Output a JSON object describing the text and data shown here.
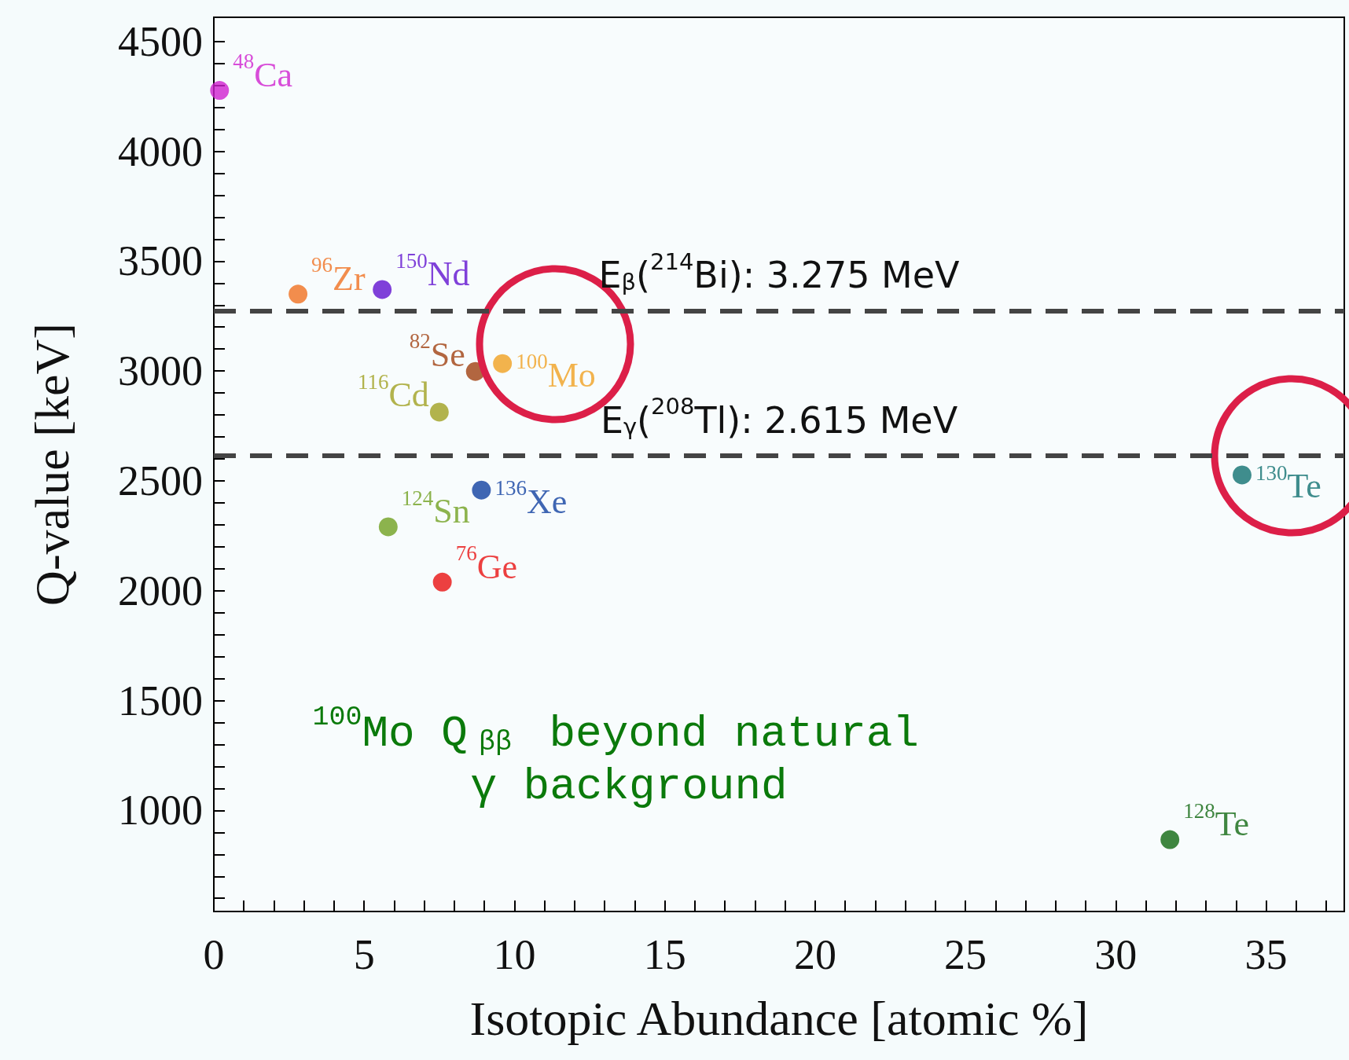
{
  "chart_data": {
    "type": "scatter",
    "xlabel": "Isotopic Abundance [atomic %]",
    "ylabel": "Q-value [keV]",
    "xlim": [
      0,
      37.6
    ],
    "ylim": [
      540,
      4610
    ],
    "xticks": [
      0,
      {
        "value": 1,
        "label": null
      },
      {
        "value": 2,
        "label": null
      },
      {
        "value": 3,
        "label": null
      },
      {
        "value": 4,
        "label": null
      },
      5,
      {
        "value": 6,
        "label": null
      },
      {
        "value": 7,
        "label": null
      },
      {
        "value": 8,
        "label": null
      },
      {
        "value": 9,
        "label": null
      },
      10,
      {
        "value": 11,
        "label": null
      },
      {
        "value": 12,
        "label": null
      },
      {
        "value": 13,
        "label": null
      },
      {
        "value": 14,
        "label": null
      },
      15,
      {
        "value": 16,
        "label": null
      },
      {
        "value": 17,
        "label": null
      },
      {
        "value": 18,
        "label": null
      },
      {
        "value": 19,
        "label": null
      },
      20,
      {
        "value": 21,
        "label": null
      },
      {
        "value": 22,
        "label": null
      },
      {
        "value": 23,
        "label": null
      },
      {
        "value": 24,
        "label": null
      },
      25,
      {
        "value": 26,
        "label": null
      },
      {
        "value": 27,
        "label": null
      },
      {
        "value": 28,
        "label": null
      },
      {
        "value": 29,
        "label": null
      },
      30,
      {
        "value": 31,
        "label": null
      },
      {
        "value": 32,
        "label": null
      },
      {
        "value": 33,
        "label": null
      },
      {
        "value": 34,
        "label": null
      },
      35,
      {
        "value": 36,
        "label": null
      },
      {
        "value": 37,
        "label": null
      }
    ],
    "yticks": [
      {
        "value": 600,
        "label": null
      },
      {
        "value": 700,
        "label": null
      },
      {
        "value": 800,
        "label": null
      },
      {
        "value": 900,
        "label": null
      },
      1000,
      {
        "value": 1100,
        "label": null
      },
      {
        "value": 1200,
        "label": null
      },
      {
        "value": 1300,
        "label": null
      },
      {
        "value": 1400,
        "label": null
      },
      1500,
      {
        "value": 1600,
        "label": null
      },
      {
        "value": 1700,
        "label": null
      },
      {
        "value": 1800,
        "label": null
      },
      {
        "value": 1900,
        "label": null
      },
      2000,
      {
        "value": 2100,
        "label": null
      },
      {
        "value": 2200,
        "label": null
      },
      {
        "value": 2300,
        "label": null
      },
      {
        "value": 2400,
        "label": null
      },
      2500,
      {
        "value": 2600,
        "label": null
      },
      {
        "value": 2700,
        "label": null
      },
      {
        "value": 2800,
        "label": null
      },
      {
        "value": 2900,
        "label": null
      },
      3000,
      {
        "value": 3100,
        "label": null
      },
      {
        "value": 3200,
        "label": null
      },
      {
        "value": 3300,
        "label": null
      },
      {
        "value": 3400,
        "label": null
      },
      3500,
      {
        "value": 3600,
        "label": null
      },
      {
        "value": 3700,
        "label": null
      },
      {
        "value": 3800,
        "label": null
      },
      {
        "value": 3900,
        "label": null
      },
      4000,
      {
        "value": 4100,
        "label": null
      },
      {
        "value": 4200,
        "label": null
      },
      {
        "value": 4300,
        "label": null
      },
      {
        "value": 4400,
        "label": null
      },
      4500
    ],
    "grid": false,
    "legend": false,
    "marker": "circle",
    "series": [
      {
        "name": "$^{48}$Ca",
        "color": "#d020d0",
        "x": [
          0.19
        ],
        "values": [
          4277
        ]
      },
      {
        "name": "$^{96}$Zr",
        "color": "#f07020",
        "x": [
          2.8
        ],
        "values": [
          3350
        ]
      },
      {
        "name": "$^{150}$Nd",
        "color": "#6010d0",
        "x": [
          5.6
        ],
        "values": [
          3371
        ]
      },
      {
        "name": "$^{82}$Se",
        "color": "#a04010",
        "x": [
          8.7
        ],
        "values": [
          2998
        ]
      },
      {
        "name": "$^{100}$Mo",
        "color": "#f0a020",
        "x": [
          9.6
        ],
        "values": [
          3034
        ]
      },
      {
        "name": "$^{116}$Cd",
        "color": "#a0a020",
        "x": [
          7.5
        ],
        "values": [
          2813
        ]
      },
      {
        "name": "$^{136}$Xe",
        "color": "#1040a0",
        "x": [
          8.9
        ],
        "values": [
          2458
        ]
      },
      {
        "name": "$^{124}$Sn",
        "color": "#70a020",
        "x": [
          5.8
        ],
        "values": [
          2291
        ]
      },
      {
        "name": "$^{76}$Ge",
        "color": "#e81010",
        "x": [
          7.6
        ],
        "values": [
          2039
        ]
      },
      {
        "name": "$^{130}$Te",
        "color": "#107070",
        "x": [
          34.2
        ],
        "values": [
          2527
        ]
      },
      {
        "name": "$^{128}$Te",
        "color": "#106810",
        "x": [
          31.8
        ],
        "values": [
          867
        ]
      }
    ],
    "ref_lines": [
      {
        "axis": "y",
        "value": 3275,
        "label": "E$_{β}$($^{214}$Bi): 3.275 MeV",
        "color": "#444444",
        "line_style": "dashed"
      },
      {
        "axis": "y",
        "value": 2615,
        "label": "E$_{γ}$($^{208}$Tl): 2.615 MeV",
        "color": "#444444",
        "line_style": "dashed"
      }
    ],
    "annotations": [
      "$^{100}$Mo Q$_{ββ}$ beyond natural γ background"
    ]
  }
}
